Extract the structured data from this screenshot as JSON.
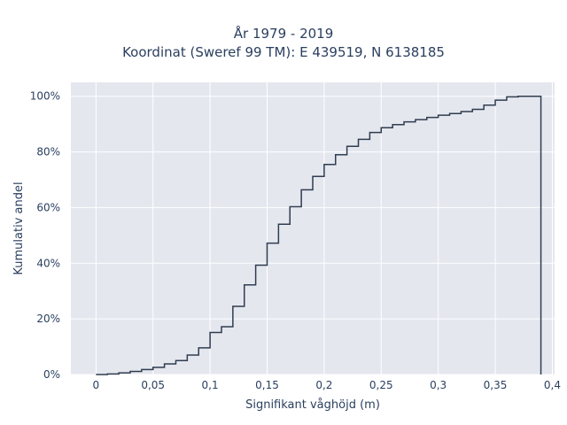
{
  "chart_data": {
    "type": "line",
    "line_shape": "step",
    "title": "År 1979 - 2019",
    "subtitle": "Koordinat (Sweref 99 TM): E 439519, N 6138185",
    "xlabel": "Signifikant våghöjd (m)",
    "ylabel": "Kumulativ andel",
    "xlim": [
      -0.022,
      0.402
    ],
    "ylim": [
      0,
      1.05
    ],
    "x_ticks": [
      0,
      0.05,
      0.1,
      0.15,
      0.2,
      0.25,
      0.3,
      0.35,
      0.4
    ],
    "x_tick_labels": [
      "0",
      "0,05",
      "0,1",
      "0,15",
      "0,2",
      "0,25",
      "0,3",
      "0,35",
      "0,4"
    ],
    "y_ticks": [
      0,
      0.2,
      0.4,
      0.6,
      0.8,
      1.0
    ],
    "y_tick_labels": [
      "0%",
      "20%",
      "40%",
      "60%",
      "80%",
      "100%"
    ],
    "grid": true,
    "plot_background": "#e5e7ef",
    "line_color": "#2f3d4f",
    "x": [
      0,
      0.01,
      0.02,
      0.03,
      0.04,
      0.05,
      0.06,
      0.07,
      0.08,
      0.09,
      0.1,
      0.11,
      0.12,
      0.13,
      0.14,
      0.15,
      0.16,
      0.17,
      0.18,
      0.19,
      0.2,
      0.21,
      0.22,
      0.23,
      0.24,
      0.25,
      0.26,
      0.27,
      0.28,
      0.29,
      0.3,
      0.31,
      0.32,
      0.33,
      0.34,
      0.35,
      0.36,
      0.37,
      0.38,
      0.39
    ],
    "y": [
      0.0,
      0.002,
      0.006,
      0.011,
      0.018,
      0.026,
      0.038,
      0.05,
      0.07,
      0.096,
      0.151,
      0.172,
      0.245,
      0.322,
      0.393,
      0.472,
      0.54,
      0.603,
      0.664,
      0.712,
      0.755,
      0.79,
      0.82,
      0.845,
      0.87,
      0.887,
      0.898,
      0.908,
      0.916,
      0.924,
      0.932,
      0.938,
      0.945,
      0.953,
      0.968,
      0.986,
      0.998,
      1.0,
      1.0,
      0.0
    ]
  }
}
